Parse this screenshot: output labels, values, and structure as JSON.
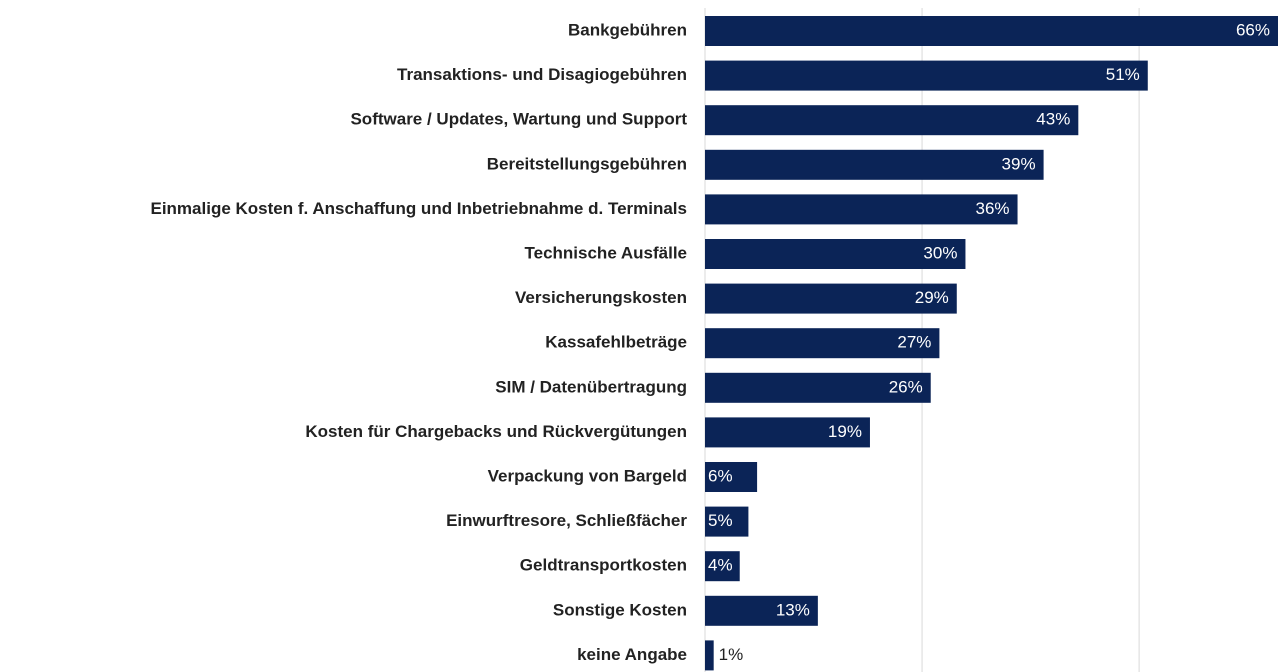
{
  "chart_data": {
    "type": "barh",
    "categories": [
      "Bankgebühren",
      "Transaktions- und Disagiogebühren",
      "Software / Updates, Wartung und Support",
      "Bereitstellungsgebühren",
      "Einmalige Kosten f. Anschaffung und Inbetriebnahme d. Terminals",
      "Technische Ausfälle",
      "Versicherungskosten",
      "Kassafehlbeträge",
      "SIM / Datenübertragung",
      "Kosten für Chargebacks und Rückvergütungen",
      "Verpackung von Bargeld",
      "Einwurftresore, Schließfächer",
      "Geldtransportkosten",
      "Sonstige Kosten",
      "keine Angabe"
    ],
    "values": [
      66,
      51,
      43,
      39,
      36,
      30,
      29,
      27,
      26,
      19,
      6,
      5,
      4,
      13,
      1
    ],
    "value_labels": [
      "66%",
      "51%",
      "43%",
      "39%",
      "36%",
      "30%",
      "29%",
      "27%",
      "26%",
      "19%",
      "6%",
      "5%",
      "4%",
      "13%",
      "1%"
    ],
    "color": "#0b2457",
    "xlim": [
      0,
      66
    ],
    "xticks": [
      0,
      25,
      50
    ],
    "grid": true
  }
}
